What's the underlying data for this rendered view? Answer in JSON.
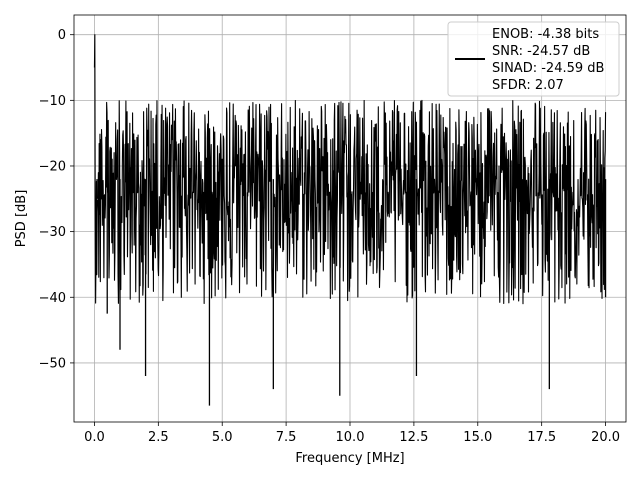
{
  "chart_data": {
    "type": "line",
    "title": "",
    "xlabel": "Frequency [MHz]",
    "ylabel": "PSD [dB]",
    "xlim": [
      -0.8,
      20.8
    ],
    "ylim": [
      -59,
      3
    ],
    "xticks": [
      0.0,
      2.5,
      5.0,
      7.5,
      10.0,
      12.5,
      15.0,
      17.5,
      20.0
    ],
    "xtick_labels": [
      "0.0",
      "2.5",
      "5.0",
      "7.5",
      "10.0",
      "12.5",
      "15.0",
      "17.5",
      "20.0"
    ],
    "yticks": [
      0,
      -10,
      -20,
      -30,
      -40,
      -50
    ],
    "ytick_labels": [
      "0",
      "−10",
      "−20",
      "−30",
      "−40",
      "−50"
    ],
    "grid": true,
    "legend_position": "top-right",
    "series": [
      {
        "name": "ENOB: -4.38 bits\nSNR: -24.57 dB\nSINAD: -24.59 dB\nSFDR: 2.07",
        "color": "#000000",
        "description_points": {
          "x": [
            0.0,
            0.02,
            0.05,
            0.1,
            0.5,
            1.0,
            2.0,
            4.5,
            7.0,
            9.6,
            12.6,
            17.8,
            20.0
          ],
          "y": [
            -5.0,
            0.0,
            -15.0,
            -25.0,
            -42.5,
            -48.0,
            -52.0,
            -56.5,
            -54.0,
            -55.0,
            -52.0,
            -54.0,
            -40.0
          ]
        }
      }
    ],
    "legend_lines": [
      "ENOB: -4.38 bits",
      "SNR: -24.57 dB",
      "SINAD: -24.59 dB",
      "SFDR: 2.07"
    ]
  }
}
